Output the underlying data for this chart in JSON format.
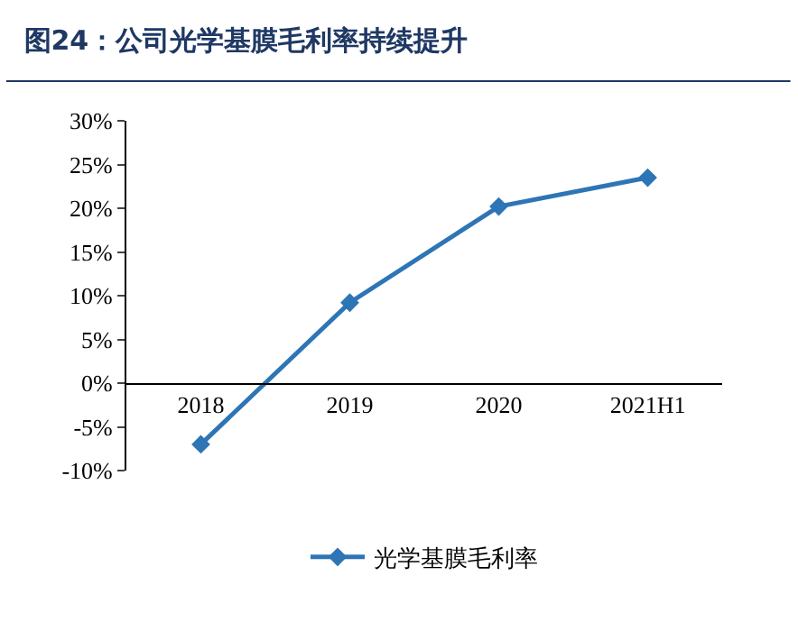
{
  "chart_data": {
    "type": "line",
    "title": "图24：公司光学基膜毛利率持续提升",
    "categories": [
      "2018",
      "2019",
      "2020",
      "2021H1"
    ],
    "series": [
      {
        "name": "光学基膜毛利率",
        "color": "#2e75b6",
        "values": [
          -7.0,
          9.2,
          20.2,
          23.5
        ]
      }
    ],
    "ylim": [
      -10,
      30
    ],
    "yticks": [
      {
        "value": -10,
        "label": "-10%"
      },
      {
        "value": -5,
        "label": "-5%"
      },
      {
        "value": 0,
        "label": "0%"
      },
      {
        "value": 5,
        "label": "5%"
      },
      {
        "value": 10,
        "label": "10%"
      },
      {
        "value": 15,
        "label": "15%"
      },
      {
        "value": 20,
        "label": "20%"
      },
      {
        "value": 25,
        "label": "25%"
      },
      {
        "value": 30,
        "label": "30%"
      }
    ],
    "marker": "diamond",
    "line_style": "solid",
    "legend": "bottom"
  }
}
